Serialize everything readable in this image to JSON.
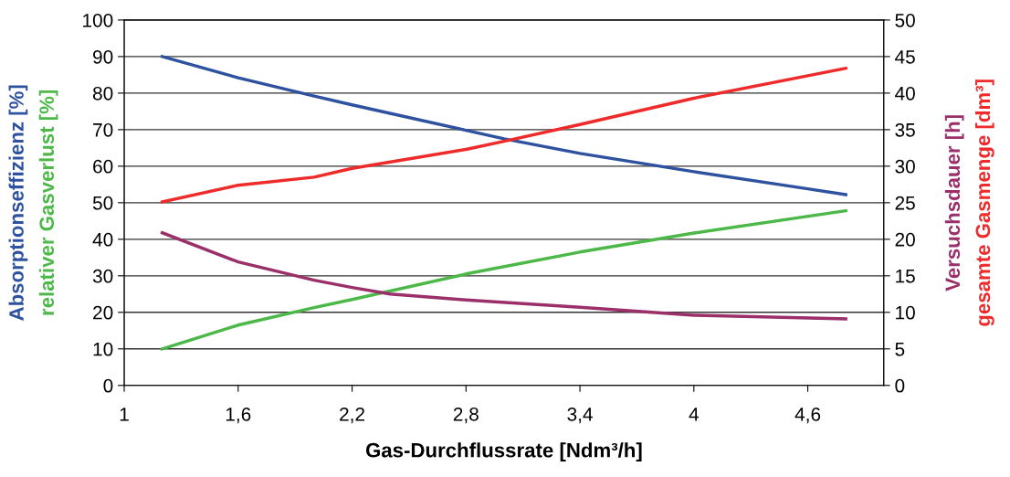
{
  "chart_data": {
    "type": "line",
    "xlabel": "Gas-Durchflussrate [Ndm³/h]",
    "xlim": [
      1,
      5
    ],
    "xticks": [
      1,
      {
        "value": 1.6,
        "label": "1,6"
      },
      {
        "value": 2.2,
        "label": "2,2"
      },
      {
        "value": 2.8,
        "label": "2,8"
      },
      {
        "value": 3.4,
        "label": "3,4"
      },
      4,
      {
        "value": 4.6,
        "label": "4,6"
      }
    ],
    "ylim": [
      0,
      100
    ],
    "yticks": [
      0,
      10,
      20,
      30,
      40,
      50,
      60,
      70,
      80,
      90,
      100
    ],
    "y2lim": [
      0,
      50
    ],
    "y2ticks": [
      0,
      5,
      10,
      15,
      20,
      25,
      30,
      35,
      40,
      45,
      50
    ],
    "grid": "y",
    "legend": false,
    "marker": "none",
    "line_style": "solid",
    "series": [
      {
        "name": "Absorptionseffizienz [%]",
        "color": "#2f52a0",
        "x": [
          1.2,
          1.6,
          2.0,
          2.2,
          2.8,
          3.0,
          3.4,
          4.0,
          4.6,
          4.8
        ],
        "values": [
          90,
          84.2,
          79.2,
          76.8,
          69.8,
          67.5,
          63.5,
          58.5,
          53.8,
          52.2
        ]
      },
      {
        "name": "relativer Gasverlust [%]",
        "color": "#4cb848",
        "x": [
          1.2,
          1.6,
          2.0,
          2.2,
          2.8,
          3.4,
          4.0,
          4.8
        ],
        "values": [
          10,
          16.5,
          21.3,
          23.5,
          30.5,
          36.5,
          41.7,
          47.8
        ]
      },
      {
        "name": "Versuchsdauer [h]",
        "color": "#9b2f6a",
        "axis": "y2",
        "x": [
          1.2,
          1.6,
          2.0,
          2.2,
          2.4,
          2.8,
          3.4,
          4.0,
          4.8
        ],
        "values": [
          20.9,
          16.9,
          14.4,
          13.4,
          12.5,
          11.7,
          10.7,
          9.6,
          9.1
        ]
      },
      {
        "name": "gesamte Gasmenge [dm³]",
        "color": "#ee2a2a",
        "axis": "y2",
        "x": [
          1.2,
          1.6,
          2.0,
          2.2,
          2.8,
          3.0,
          3.4,
          4.0,
          4.8
        ],
        "values": [
          25.1,
          27.4,
          28.5,
          29.7,
          32.3,
          33.4,
          35.7,
          39.3,
          43.4
        ]
      }
    ]
  }
}
